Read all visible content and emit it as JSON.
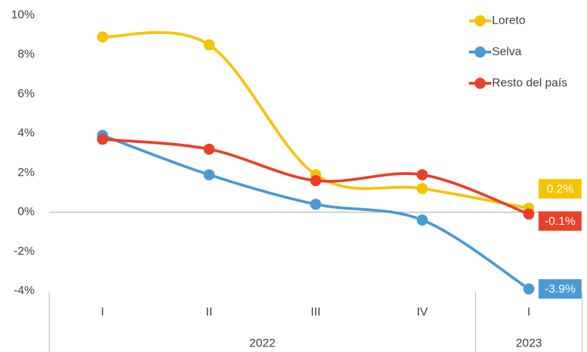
{
  "chart_data": {
    "type": "line",
    "categories": [
      "I",
      "II",
      "III",
      "IV",
      "I"
    ],
    "groups": [
      "2022",
      "2022",
      "2022",
      "2022",
      "2023"
    ],
    "series": [
      {
        "name": "Loreto",
        "color": "#f5c400",
        "values": [
          8.9,
          8.5,
          1.9,
          1.2,
          0.2
        ],
        "value_labels": [
          null,
          null,
          null,
          null,
          "0.2%"
        ]
      },
      {
        "name": "Selva",
        "color": "#4a9ad4",
        "values": [
          3.9,
          1.9,
          0.4,
          -0.4,
          -3.9
        ],
        "value_labels": [
          null,
          null,
          null,
          null,
          "-3.9%"
        ]
      },
      {
        "name": "Resto del país",
        "color": "#e8402a",
        "values": [
          3.7,
          3.2,
          1.6,
          1.9,
          -0.1
        ],
        "value_labels": [
          null,
          null,
          null,
          null,
          "-0.1%"
        ]
      }
    ],
    "ylim": [
      -4,
      10
    ],
    "yticks": [
      {
        "value": -4,
        "label": "-4%"
      },
      {
        "value": -2,
        "label": "-2%"
      },
      {
        "value": 0,
        "label": "0%"
      },
      {
        "value": 2,
        "label": "2%"
      },
      {
        "value": 4,
        "label": "4%"
      },
      {
        "value": 6,
        "label": "6%"
      },
      {
        "value": 8,
        "label": "8%"
      },
      {
        "value": 10,
        "label": "10%"
      }
    ],
    "grid": false,
    "legend": "top-right"
  }
}
